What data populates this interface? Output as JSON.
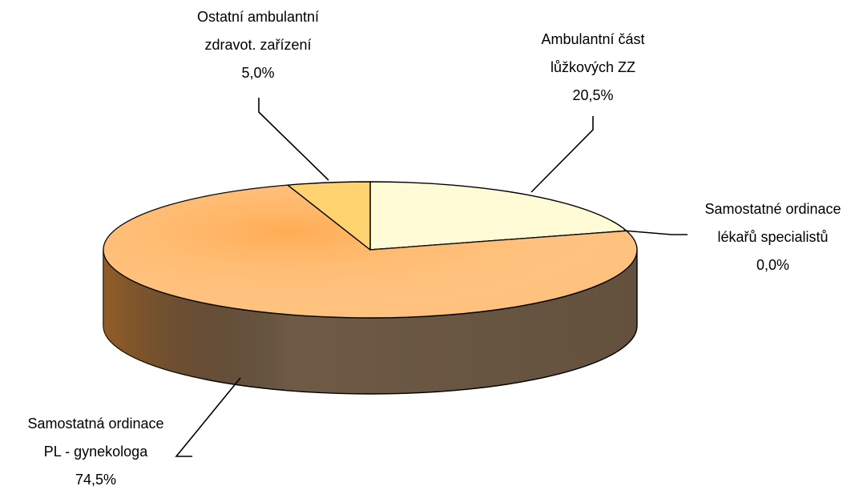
{
  "chart_data": {
    "type": "pie3d",
    "categories": [
      "Ambulantní část lůžkových ZZ",
      "Samostatné ordinace lékařů specialistů",
      "Samostatná ordinace PL - gynekologa",
      "Ostatní ambulantní zdravot. zařízení"
    ],
    "values": [
      20.5,
      0.0,
      74.5,
      5.0
    ],
    "value_labels": [
      "20,5%",
      "0,0%",
      "74,5%",
      "5,0%"
    ],
    "colors": [
      "#fffbd6",
      "#ffe8a0",
      "#ffbf78",
      "#ffd470"
    ],
    "side_color": "#6e5a45"
  }
}
